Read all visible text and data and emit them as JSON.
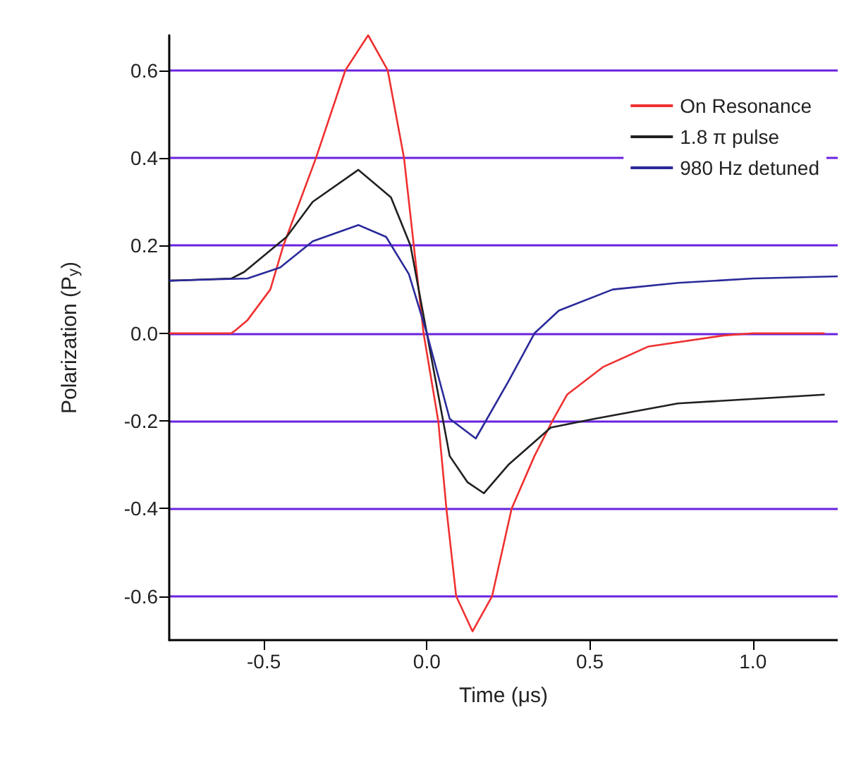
{
  "chart_data": {
    "type": "line",
    "xlabel": "Time (μs)",
    "ylabel": "Polarization (P$_{y}$)",
    "xlim": [
      -0.79,
      1.26
    ],
    "ylim": [
      -0.7,
      0.68
    ],
    "xticks": [
      -0.5,
      {
        "value": 0,
        "label": "0.0"
      },
      0.5,
      {
        "value": 1,
        "label": "1.0"
      }
    ],
    "yticks": [
      -0.6,
      -0.4,
      -0.2,
      {
        "value": 0,
        "label": "0.0"
      },
      0.2,
      0.4,
      0.6
    ],
    "grid": "y",
    "legend": "top right",
    "marker": "none",
    "line_style": "solid",
    "series": [
      {
        "name": "On Resonance",
        "color": "#f03030",
        "x": [
          -0.79,
          -0.6,
          -0.59,
          -0.55,
          -0.48,
          -0.44,
          -0.34,
          -0.25,
          -0.18,
          -0.12,
          -0.07,
          -0.04,
          -0.01,
          0.035,
          0.06,
          0.09,
          0.14,
          0.2,
          0.26,
          0.33,
          0.385,
          0.43,
          0.54,
          0.68,
          0.91,
          1.0,
          1.22
        ],
        "values": [
          0,
          0,
          0.005,
          0.03,
          0.1,
          0.2,
          0.4,
          0.6,
          0.68,
          0.6,
          0.4,
          0.2,
          0,
          -0.2,
          -0.4,
          -0.6,
          -0.68,
          -0.6,
          -0.4,
          -0.28,
          -0.2,
          -0.14,
          -0.077,
          -0.03,
          -0.005,
          0,
          0
        ]
      },
      {
        "name": "1.8 π pulse",
        "color": "#202020",
        "x": [
          -0.79,
          -0.6,
          -0.56,
          -0.43,
          -0.35,
          -0.21,
          -0.11,
          -0.05,
          0,
          0.07,
          0.125,
          0.175,
          0.25,
          0.38,
          0.515,
          0.77,
          1.22
        ],
        "values": [
          0.12,
          0.125,
          0.14,
          0.22,
          0.3,
          0.373,
          0.31,
          0.2,
          0,
          -0.28,
          -0.34,
          -0.365,
          -0.3,
          -0.215,
          -0.195,
          -0.16,
          -0.14
        ]
      },
      {
        "name": "980 Hz detuned",
        "color": "#2a2a9a",
        "x": [
          -0.79,
          -0.55,
          -0.45,
          -0.35,
          -0.21,
          -0.125,
          -0.055,
          0,
          0.07,
          0.15,
          0.25,
          0.33,
          0.405,
          0.57,
          0.77,
          1.0,
          1.26
        ],
        "values": [
          0.12,
          0.125,
          0.15,
          0.21,
          0.247,
          0.22,
          0.135,
          0,
          -0.195,
          -0.24,
          -0.11,
          0,
          0.052,
          0.1,
          0.115,
          0.125,
          0.13
        ]
      }
    ]
  }
}
